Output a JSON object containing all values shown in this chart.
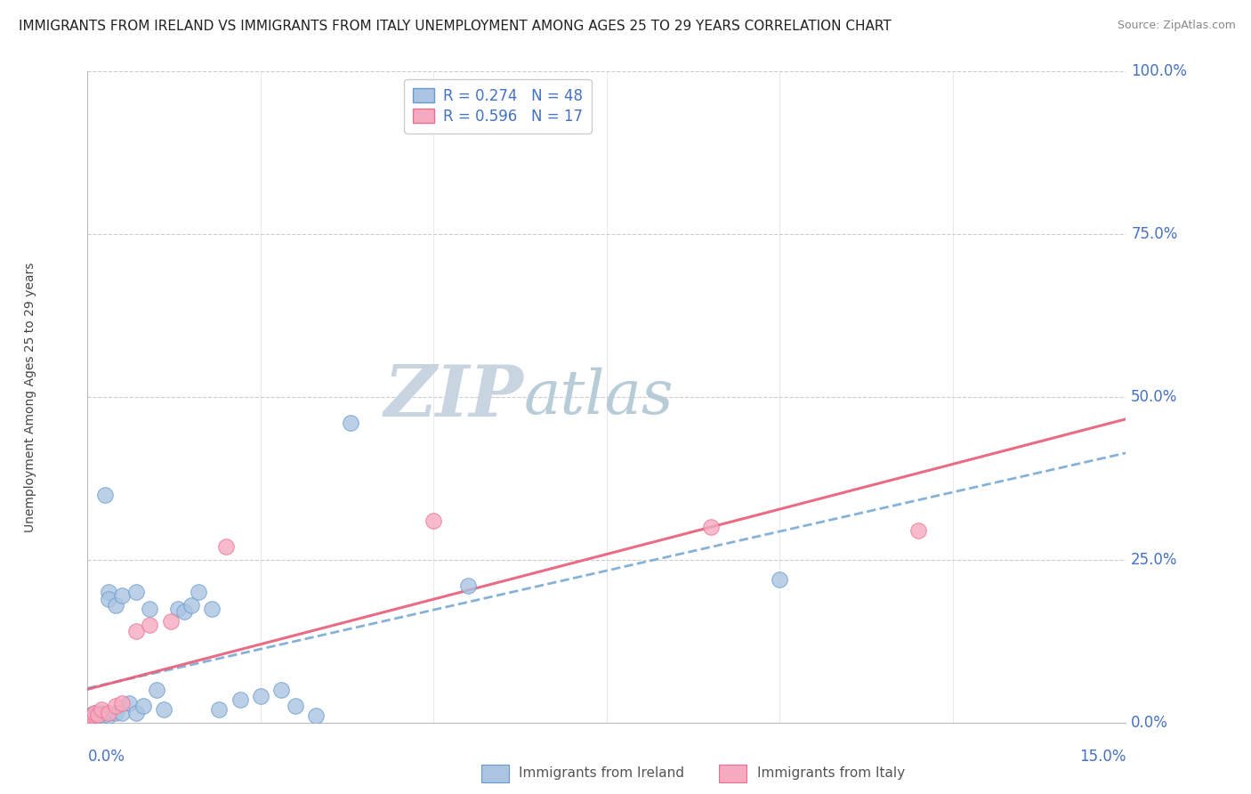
{
  "title": "IMMIGRANTS FROM IRELAND VS IMMIGRANTS FROM ITALY UNEMPLOYMENT AMONG AGES 25 TO 29 YEARS CORRELATION CHART",
  "source": "Source: ZipAtlas.com",
  "ylabel": "Unemployment Among Ages 25 to 29 years",
  "right_ytick_labels": [
    "0.0%",
    "25.0%",
    "50.0%",
    "75.0%",
    "100.0%"
  ],
  "right_ytick_vals": [
    0.0,
    0.25,
    0.5,
    0.75,
    1.0
  ],
  "ireland_color": "#aac4e2",
  "italy_color": "#f5aabf",
  "ireland_edge_color": "#6699cc",
  "italy_edge_color": "#e87090",
  "ireland_line_color": "#7aaad4",
  "italy_line_color": "#e8607a",
  "grid_color": "#cccccc",
  "watermark_zip_color": "#c8d8e8",
  "watermark_atlas_color": "#c8d8e0",
  "background_color": "#ffffff",
  "title_fontsize": 11,
  "source_fontsize": 9,
  "ylabel_fontsize": 10,
  "tick_fontsize": 12,
  "legend_fontsize": 12,
  "xmin": 0.0,
  "xmax": 0.15,
  "ymin": 0.0,
  "ymax": 1.0,
  "ireland_x": [
    0.0002,
    0.0003,
    0.0004,
    0.0005,
    0.0006,
    0.0007,
    0.0008,
    0.001,
    0.001,
    0.0012,
    0.0013,
    0.0014,
    0.0015,
    0.0016,
    0.0017,
    0.0018,
    0.002,
    0.002,
    0.0022,
    0.0025,
    0.003,
    0.003,
    0.003,
    0.004,
    0.004,
    0.005,
    0.005,
    0.006,
    0.007,
    0.007,
    0.008,
    0.009,
    0.01,
    0.011,
    0.013,
    0.014,
    0.015,
    0.016,
    0.018,
    0.019,
    0.022,
    0.025,
    0.028,
    0.03,
    0.033,
    0.038,
    0.055,
    0.1
  ],
  "ireland_y": [
    0.005,
    0.01,
    0.008,
    0.012,
    0.006,
    0.008,
    0.01,
    0.005,
    0.015,
    0.008,
    0.01,
    0.006,
    0.012,
    0.008,
    0.01,
    0.012,
    0.008,
    0.015,
    0.01,
    0.35,
    0.2,
    0.19,
    0.01,
    0.18,
    0.015,
    0.195,
    0.015,
    0.03,
    0.015,
    0.2,
    0.025,
    0.175,
    0.05,
    0.02,
    0.175,
    0.17,
    0.18,
    0.2,
    0.175,
    0.02,
    0.035,
    0.04,
    0.05,
    0.025,
    0.01,
    0.46,
    0.21,
    0.22
  ],
  "italy_x": [
    0.0002,
    0.0004,
    0.0006,
    0.0008,
    0.001,
    0.0015,
    0.002,
    0.003,
    0.004,
    0.005,
    0.007,
    0.009,
    0.012,
    0.02,
    0.05,
    0.09,
    0.12
  ],
  "italy_y": [
    0.005,
    0.008,
    0.01,
    0.012,
    0.015,
    0.012,
    0.02,
    0.015,
    0.025,
    0.03,
    0.14,
    0.15,
    0.155,
    0.27,
    0.31,
    0.3,
    0.295
  ],
  "xtick_positions": [
    0.025,
    0.05,
    0.075,
    0.1,
    0.125
  ],
  "ytick_positions": [
    0.25,
    0.5,
    0.75,
    1.0
  ],
  "legend_ireland_label": "R = 0.274   N = 48",
  "legend_italy_label": "R = 0.596   N = 17",
  "bottom_legend_ireland": "Immigrants from Ireland",
  "bottom_legend_italy": "Immigrants from Italy"
}
